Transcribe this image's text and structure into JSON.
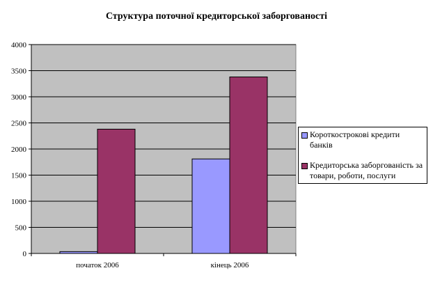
{
  "chart_data": {
    "type": "bar",
    "title": "Структура поточної кредиторської заборгованості",
    "categories": [
      "початок 2006",
      "кінець 2006"
    ],
    "series": [
      {
        "name": "Короткострокові кредити банків",
        "values": [
          35,
          1810
        ],
        "color": "#9999FF"
      },
      {
        "name": "Кредиторська заборгованість за товари, роботи, послуги",
        "values": [
          2380,
          3380
        ],
        "color": "#993366"
      }
    ],
    "ylim": [
      0,
      4000
    ],
    "yticks": [
      0,
      500,
      1000,
      1500,
      2000,
      2500,
      3000,
      3500,
      4000
    ],
    "grid": true,
    "plot_background": "#C0C0C0",
    "legend": "right",
    "xlabel": "",
    "ylabel": ""
  }
}
